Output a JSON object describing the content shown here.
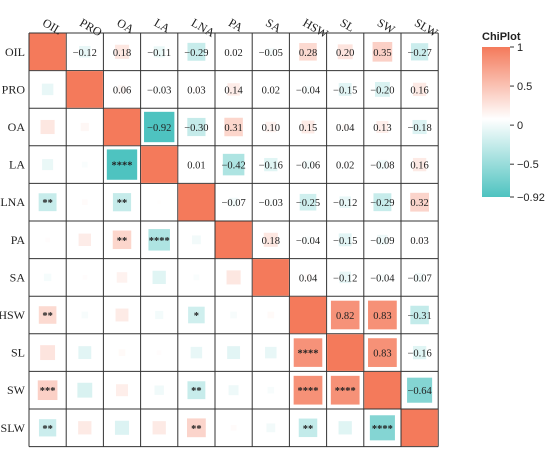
{
  "chart_data": {
    "type": "heatmap",
    "variables": [
      "OIL",
      "PRO",
      "OA",
      "LA",
      "LNA",
      "PA",
      "SA",
      "HSW",
      "SL",
      "SW",
      "SLW"
    ],
    "correlations": [
      [
        1,
        -0.12,
        0.18,
        -0.11,
        -0.29,
        0.02,
        -0.05,
        0.28,
        0.2,
        0.35,
        -0.27
      ],
      [
        -0.12,
        1,
        0.06,
        -0.03,
        0.03,
        0.14,
        0.02,
        -0.04,
        -0.15,
        -0.2,
        0.16
      ],
      [
        0.18,
        0.06,
        1,
        -0.92,
        -0.3,
        0.31,
        0.1,
        0.15,
        0.04,
        0.13,
        -0.18
      ],
      [
        -0.11,
        -0.03,
        -0.92,
        1,
        0.01,
        -0.42,
        -0.16,
        -0.06,
        0.02,
        -0.08,
        0.16
      ],
      [
        -0.29,
        0.03,
        -0.3,
        0.01,
        1,
        -0.07,
        -0.03,
        -0.25,
        -0.12,
        -0.29,
        0.32
      ],
      [
        0.02,
        0.14,
        0.31,
        -0.42,
        -0.07,
        1,
        0.18,
        -0.04,
        -0.15,
        -0.09,
        0.03
      ],
      [
        -0.05,
        0.02,
        0.1,
        -0.16,
        -0.03,
        0.18,
        1,
        0.04,
        -0.12,
        -0.04,
        -0.07
      ],
      [
        0.28,
        -0.04,
        0.15,
        -0.06,
        -0.25,
        -0.04,
        0.04,
        1,
        0.82,
        0.83,
        -0.31
      ],
      [
        0.2,
        -0.15,
        0.04,
        0.02,
        -0.12,
        -0.15,
        -0.12,
        0.82,
        1,
        0.83,
        -0.16
      ],
      [
        0.35,
        -0.2,
        0.13,
        -0.08,
        -0.29,
        -0.09,
        -0.04,
        0.83,
        0.83,
        1,
        -0.64
      ],
      [
        -0.27,
        0.16,
        -0.18,
        0.16,
        0.32,
        0.03,
        -0.07,
        -0.31,
        -0.16,
        -0.64,
        1
      ]
    ],
    "upper_labels": [
      [
        "",
        "−0.12",
        "0.18",
        "−0.11",
        "−0.29",
        "0.02",
        "−0.05",
        "0.28",
        "0.20",
        "0.35",
        "−0.27"
      ],
      [
        "",
        "",
        "0.06",
        "−0.03",
        "0.03",
        "0.14",
        "0.02",
        "−0.04",
        "−0.15",
        "−0.20",
        "0.16"
      ],
      [
        "",
        "",
        "",
        "−0.92",
        "−0.30",
        "0.31",
        "0.10",
        "0.15",
        "0.04",
        "0.13",
        "−0.18"
      ],
      [
        "",
        "",
        "",
        "",
        "0.01",
        "−0.42",
        "−0.16",
        "−0.06",
        "0.02",
        "−0.08",
        "0.16"
      ],
      [
        "",
        "",
        "",
        "",
        "",
        "−0.07",
        "−0.03",
        "−0.25",
        "−0.12",
        "−0.29",
        "0.32"
      ],
      [
        "",
        "",
        "",
        "",
        "",
        "",
        "0.18",
        "−0.04",
        "−0.15",
        "−0.09",
        "0.03"
      ],
      [
        "",
        "",
        "",
        "",
        "",
        "",
        "",
        "0.04",
        "−0.12",
        "−0.04",
        "−0.07"
      ],
      [
        "",
        "",
        "",
        "",
        "",
        "",
        "",
        "",
        "0.82",
        "0.83",
        "−0.31"
      ],
      [
        "",
        "",
        "",
        "",
        "",
        "",
        "",
        "",
        "",
        "0.83",
        "−0.16"
      ],
      [
        "",
        "",
        "",
        "",
        "",
        "",
        "",
        "",
        "",
        "",
        "−0.64"
      ],
      [
        "",
        "",
        "",
        "",
        "",
        "",
        "",
        "",
        "",
        "",
        ""
      ]
    ],
    "lower_stars": [
      [
        "",
        "",
        "",
        "",
        "",
        "",
        "",
        "",
        "",
        "",
        ""
      ],
      [
        "",
        "",
        "",
        "",
        "",
        "",
        "",
        "",
        "",
        "",
        ""
      ],
      [
        "",
        "",
        "",
        "",
        "",
        "",
        "",
        "",
        "",
        "",
        ""
      ],
      [
        "",
        "",
        "****",
        "",
        "",
        "",
        "",
        "",
        "",
        "",
        ""
      ],
      [
        "**",
        "",
        "**",
        "",
        "",
        "",
        "",
        "",
        "",
        "",
        ""
      ],
      [
        "",
        "",
        "**",
        "****",
        "",
        "",
        "",
        "",
        "",
        "",
        ""
      ],
      [
        "",
        "",
        "",
        "",
        "",
        "",
        "",
        "",
        "",
        "",
        ""
      ],
      [
        "**",
        "",
        "",
        "",
        "*",
        "",
        "",
        "",
        "",
        "",
        ""
      ],
      [
        "",
        "",
        "",
        "",
        "",
        "",
        "",
        "****",
        "",
        "",
        ""
      ],
      [
        "***",
        "",
        "",
        "",
        "**",
        "",
        "",
        "****",
        "****",
        "",
        ""
      ],
      [
        "**",
        "",
        "",
        "",
        "**",
        "",
        "",
        "**",
        "",
        "****",
        ""
      ]
    ],
    "legend": {
      "title": "ChiPlot",
      "ticks": [
        "1",
        "0.5",
        "0",
        "−0.5",
        "−0.92"
      ],
      "tick_values": [
        1,
        0.5,
        0,
        -0.5,
        -0.92
      ],
      "range": [
        -0.92,
        1
      ],
      "position": "right"
    },
    "colors": {
      "positive": "#f47a5b",
      "neutral": "#ffffff",
      "negative": "#4ec3c0"
    }
  }
}
